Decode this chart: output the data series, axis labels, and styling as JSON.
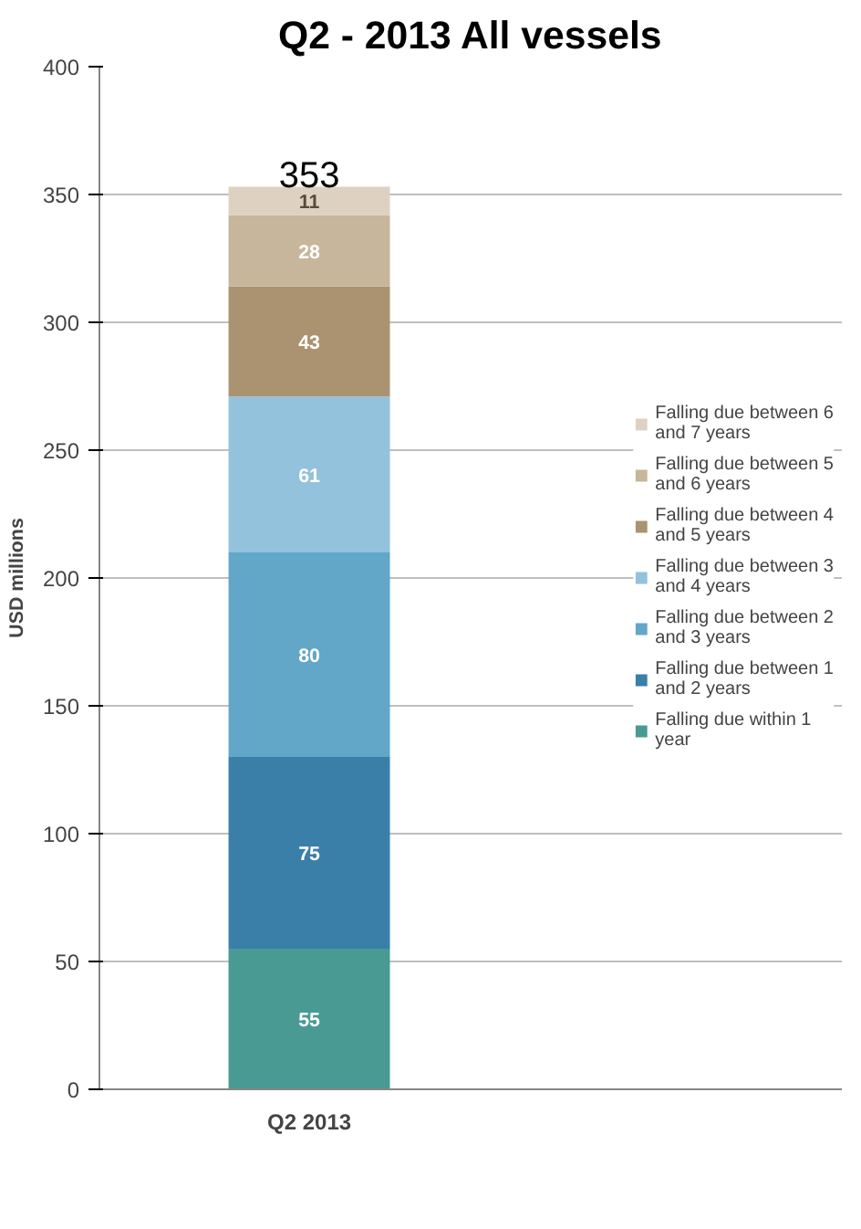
{
  "chart_data": {
    "type": "bar",
    "title": "Q2 - 2013 All vessels",
    "ylabel": "USD millions",
    "categories": [
      "Q2 2013"
    ],
    "stacked": true,
    "data_labels": true,
    "totals": [
      "353"
    ],
    "ylim": [
      0,
      400
    ],
    "yticks": [
      0,
      50,
      100,
      150,
      200,
      250,
      300,
      350,
      400
    ],
    "grid": "y",
    "legend": "right",
    "series": [
      {
        "name": "Falling due within 1 year",
        "color": "#4a9a94",
        "values": [
          55
        ]
      },
      {
        "name": "Falling due between 1 and 2 years",
        "color": "#3a7fa8",
        "values": [
          75
        ]
      },
      {
        "name": "Falling due between 2 and 3 years",
        "color": "#62a6c8",
        "values": [
          80
        ]
      },
      {
        "name": "Falling due between 3 and 4 years",
        "color": "#93c2dc",
        "values": [
          61
        ]
      },
      {
        "name": "Falling due between 4 and 5 years",
        "color": "#ab9371",
        "values": [
          43
        ]
      },
      {
        "name": "Falling due between 5 and 6 years",
        "color": "#c7b69c",
        "values": [
          28
        ]
      },
      {
        "name": "Falling due between 6 and 7 years",
        "color": "#ddd2c2",
        "values": [
          11
        ]
      }
    ]
  }
}
